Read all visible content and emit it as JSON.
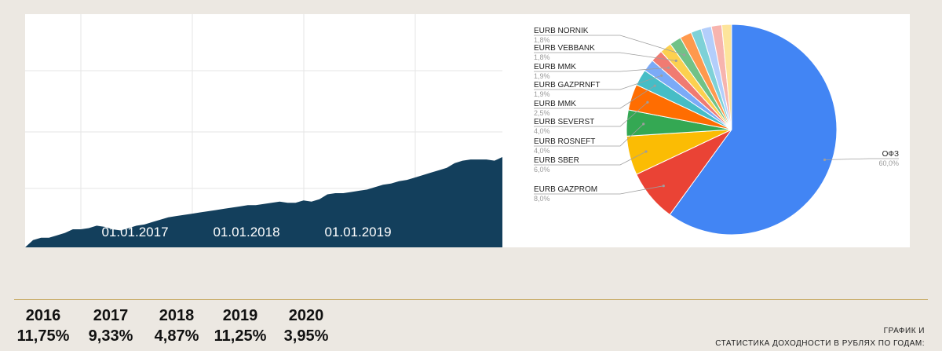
{
  "chart_data": [
    {
      "type": "area",
      "x_tick_labels": [
        "01.01.2017",
        "01.01.2018",
        "01.01.2019"
      ],
      "series": [
        {
          "values": [
            0,
            6,
            8,
            8,
            10,
            12,
            15,
            15,
            16,
            18,
            17,
            15,
            14,
            16,
            18,
            19,
            21,
            23,
            25,
            26,
            27,
            28,
            29,
            30,
            31,
            32,
            33,
            34,
            35,
            35,
            36,
            37,
            38,
            37,
            37,
            39,
            38,
            40,
            44,
            45,
            45,
            46,
            47,
            48,
            50,
            52,
            53,
            55,
            56,
            58,
            60,
            62,
            64,
            66,
            70,
            72,
            73,
            73,
            73,
            72,
            75
          ],
          "color": "#133f5c"
        }
      ],
      "grid": true
    },
    {
      "type": "pie",
      "slices": [
        {
          "label": "ОФЗ",
          "value": 60.0,
          "pct": "60,0%",
          "color": "#4285f4"
        },
        {
          "label": "EURB GAZPROM",
          "value": 8.0,
          "pct": "8,0%",
          "color": "#ea4335"
        },
        {
          "label": "EURB SBER",
          "value": 6.0,
          "pct": "6,0%",
          "color": "#fbbc04"
        },
        {
          "label": "EURB ROSNEFT",
          "value": 4.0,
          "pct": "4,0%",
          "color": "#34a853"
        },
        {
          "label": "EURB SEVERST",
          "value": 4.0,
          "pct": "4,0%",
          "color": "#ff6d01"
        },
        {
          "label": "EURB MMK",
          "value": 2.5,
          "pct": "2,5%",
          "color": "#46bdc6"
        },
        {
          "label": "EURB GAZPRNFT",
          "value": 1.9,
          "pct": "1,9%",
          "color": "#7baaf7"
        },
        {
          "label": "EURB MMK",
          "value": 1.9,
          "pct": "1,9%",
          "color": "#f07b72"
        },
        {
          "label": "EURB VEBBANK",
          "value": 1.8,
          "pct": "1,8%",
          "color": "#fcd04f"
        },
        {
          "label": "EURB NORNIK",
          "value": 1.8,
          "pct": "1,8%",
          "color": "#71c287"
        },
        {
          "label": "",
          "value": 1.8,
          "color": "#ff994d"
        },
        {
          "label": "",
          "value": 1.6,
          "color": "#7ed1d7"
        },
        {
          "label": "",
          "value": 1.6,
          "color": "#b3cefb"
        },
        {
          "label": "",
          "value": 1.6,
          "color": "#f7b4ae"
        },
        {
          "label": "",
          "value": 1.5,
          "color": "#fde49b"
        }
      ]
    }
  ],
  "returns": [
    {
      "year": "2016",
      "value": "11,75%"
    },
    {
      "year": "2017",
      "value": "9,33%"
    },
    {
      "year": "2018",
      "value": "4,87%"
    },
    {
      "year": "2019",
      "value": "11,25%"
    },
    {
      "year": "2020",
      "value": "3,95%"
    }
  ],
  "caption": {
    "line1": "ГРАФИК И",
    "line2": "СТАТИСТИКА ДОХОДНОСТИ В РУБЛЯХ ПО ГОДАМ:"
  }
}
